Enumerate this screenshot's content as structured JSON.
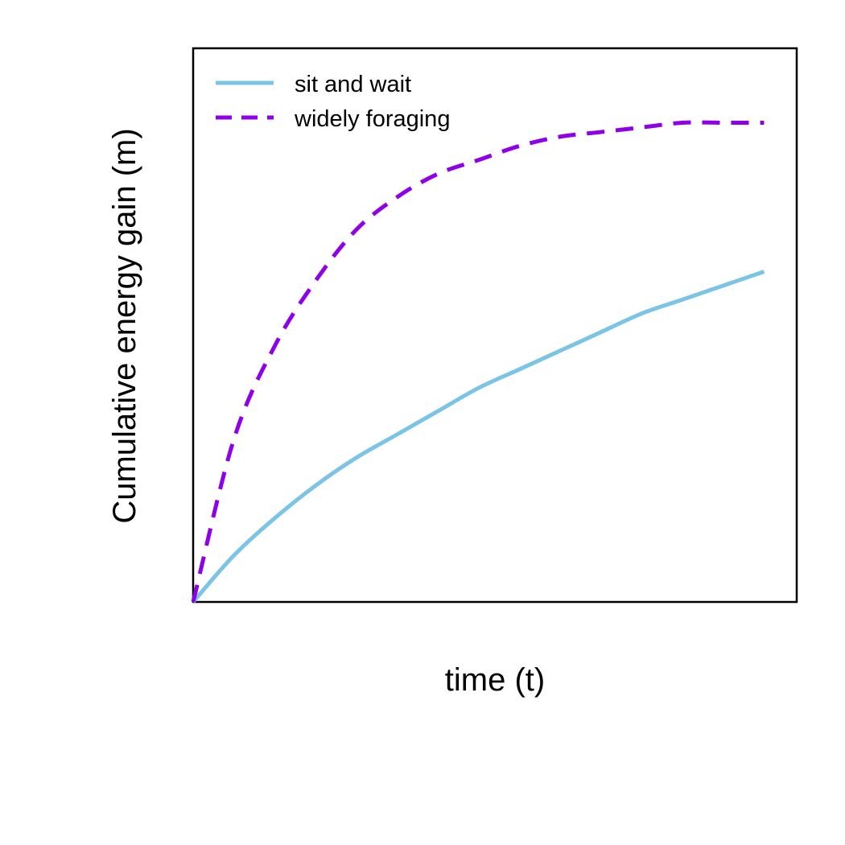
{
  "chart_data": {
    "type": "line",
    "title": "",
    "xlabel": "time (t)",
    "ylabel": "Cumulative energy gain (m)",
    "x_ticks_shown": false,
    "y_ticks_shown": false,
    "grid": false,
    "legend_position": "top-left",
    "xlim": [
      0,
      7.4
    ],
    "ylim": [
      0,
      1.19
    ],
    "series": [
      {
        "name": "sit and wait",
        "color": "#7bc4e6",
        "line_style": "solid",
        "x": [
          0,
          0.5,
          1,
          1.5,
          2,
          2.5,
          3,
          3.5,
          4,
          4.5,
          5,
          5.5,
          6,
          6.5,
          7
        ],
        "y": [
          0,
          0.1,
          0.18,
          0.25,
          0.31,
          0.36,
          0.41,
          0.46,
          0.5,
          0.54,
          0.58,
          0.62,
          0.65,
          0.68,
          0.71
        ]
      },
      {
        "name": "widely foraging",
        "color": "#8f00ea",
        "line_style": "dashed",
        "x": [
          0,
          0.5,
          1,
          1.5,
          2,
          2.5,
          3,
          3.5,
          4,
          4.5,
          5,
          5.5,
          6,
          6.5,
          7
        ],
        "y": [
          0,
          0.35,
          0.55,
          0.69,
          0.8,
          0.87,
          0.92,
          0.95,
          0.98,
          1.0,
          1.01,
          1.02,
          1.03,
          1.03,
          1.03
        ]
      }
    ]
  }
}
